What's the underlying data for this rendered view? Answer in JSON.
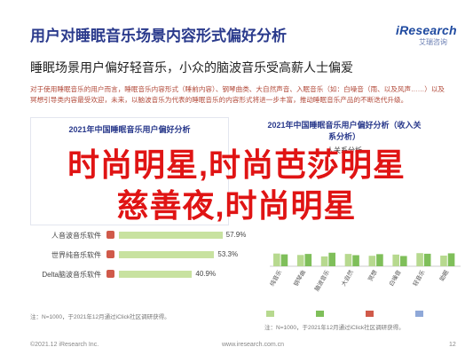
{
  "header": {
    "title": "用户对睡眠音乐场景内容形式偏好分析",
    "logo_brand": "iResearch",
    "logo_sub": "艾瑞咨询",
    "subtitle": "睡眠场景用户偏好轻音乐，小众的脑波音乐受高薪人士偏爱",
    "description": "对于使用睡眠音乐的用户而言，睡眠音乐内容形式（睡前内容）、钢琴曲类、大自然声音、入眠音乐（如：白噪音（雨、以及风声……）以及冥想引导类内容最受欢迎，未来，以脑波音乐为代表的睡眠音乐的内容形式将进一步丰富，推动睡眠音乐产品的不断迭代升级。"
  },
  "overlay": {
    "line1": "时尚明星,时尚芭莎明星",
    "line2": "慈善夜,时尚明星"
  },
  "chart_data": [
    {
      "type": "bar",
      "title": "2021年中国睡眠音乐用户偏好分析",
      "orientation": "horizontal",
      "categories": [
        "人音波音乐软件",
        "世界纯音乐软件",
        "Delta脑波音乐软件"
      ],
      "values": [
        57.9,
        53.3,
        40.9
      ],
      "value_labels": [
        "57.9%",
        "53.3%",
        "40.9%"
      ],
      "xlim": [
        0,
        100
      ],
      "bar_color": "#c8e2a0",
      "icon_color": "#d05a4a"
    },
    {
      "type": "bar",
      "title": "2021年中国睡眠音乐用户偏好分析（收入关系分析）",
      "subtitle": "人关系分析",
      "categories": [
        "纯音乐",
        "钢琴曲",
        "脑波音乐",
        "大自然",
        "冥想",
        "白噪音",
        "轻音乐",
        "助眠"
      ],
      "series": [
        {
          "name": "",
          "color": "#b7d98f",
          "values": [
            62,
            55,
            48,
            60,
            51,
            57,
            64,
            52
          ]
        },
        {
          "name": "",
          "color": "#7fbf5a",
          "values": [
            58,
            60,
            66,
            54,
            59,
            50,
            61,
            63
          ]
        }
      ],
      "ylim": [
        0,
        100
      ],
      "legend_labels": [
        "",
        "",
        "",
        ""
      ],
      "legend_colors": [
        "#b7d98f",
        "#7fbf5a",
        "#d05a4a",
        "#8fa8d8"
      ]
    }
  ],
  "notes": {
    "left": "注：N=1000，于2021年12月通过iClick社区调研获得。",
    "right": "注：N=1000，于2021年12月通过iClick社区调研获得。"
  },
  "footer": {
    "source": "©2021.12 iResearch Inc.",
    "url": "www.iresearch.com.cn",
    "page": "12"
  }
}
